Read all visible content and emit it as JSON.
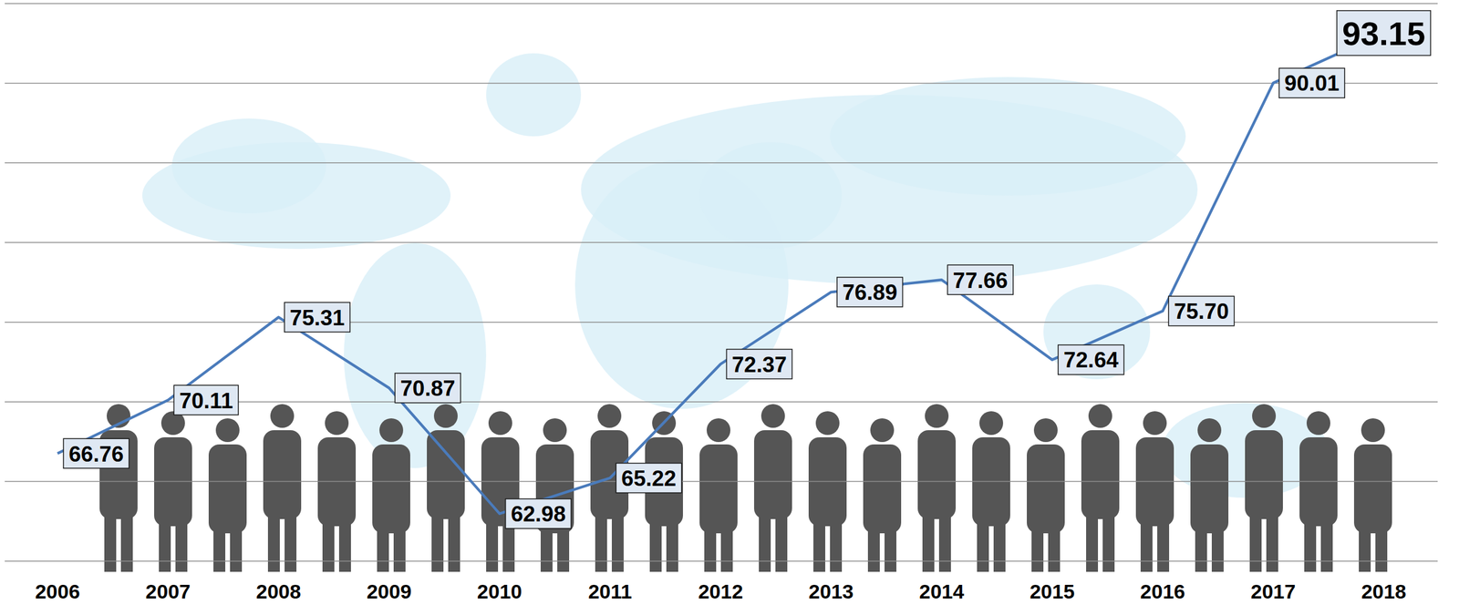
{
  "chart_data": {
    "type": "line",
    "categories": [
      "2006",
      "2007",
      "2008",
      "2009",
      "2010",
      "2011",
      "2012",
      "2013",
      "2014",
      "2015",
      "2016",
      "2017",
      "2018"
    ],
    "values": [
      66.76,
      70.11,
      75.31,
      70.87,
      62.98,
      65.22,
      72.37,
      76.89,
      77.66,
      72.64,
      75.7,
      90.01,
      93.15
    ],
    "value_labels": [
      "66.76",
      "70.11",
      "75.31",
      "70.87",
      "62.98",
      "65.22",
      "72.37",
      "76.89",
      "77.66",
      "72.64",
      "75.70",
      "90.01",
      "93.15"
    ],
    "color": "#4a7bbb",
    "ylim": [
      60,
      95
    ],
    "yticks": [
      60,
      65,
      70,
      75,
      80,
      85,
      90,
      95
    ],
    "grid": true,
    "data_labels": true,
    "tick_labels": "x"
  }
}
